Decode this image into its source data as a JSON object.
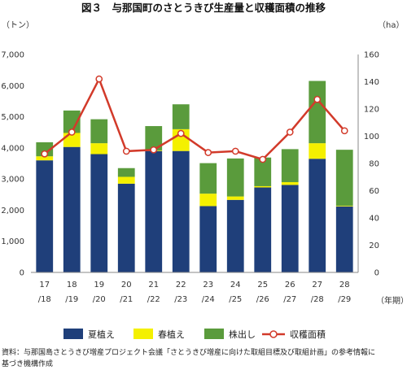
{
  "chart_data": {
    "type": "bar",
    "title": "図３　与那国町のさとうきび生産量と収穫面積の推移",
    "y_left_unit": "（トン）",
    "y_right_unit": "（ha）",
    "x_unit": "（年期）",
    "ylim_left": [
      0,
      7000
    ],
    "ylim_right": [
      0,
      160
    ],
    "yticks_left": [
      "0",
      "1,000",
      "2,000",
      "3,000",
      "4,000",
      "5,000",
      "6,000",
      "7,000"
    ],
    "yticks_right": [
      "0",
      "20",
      "40",
      "60",
      "80",
      "100",
      "120",
      "140",
      "160"
    ],
    "categories": [
      {
        "top": "17",
        "bottom": "/18"
      },
      {
        "top": "18",
        "bottom": "/19"
      },
      {
        "top": "19",
        "bottom": "/20"
      },
      {
        "top": "20",
        "bottom": "/21"
      },
      {
        "top": "21",
        "bottom": "/22"
      },
      {
        "top": "22",
        "bottom": "/23"
      },
      {
        "top": "23",
        "bottom": "/24"
      },
      {
        "top": "24",
        "bottom": "/25"
      },
      {
        "top": "25",
        "bottom": "/26"
      },
      {
        "top": "26",
        "bottom": "/27"
      },
      {
        "top": "27",
        "bottom": "/28"
      },
      {
        "top": "28",
        "bottom": "/29"
      }
    ],
    "series": [
      {
        "name": "夏植え",
        "color": "#1f3f7a",
        "values": [
          3600,
          4030,
          3800,
          2850,
          3900,
          3900,
          2130,
          2330,
          2730,
          2810,
          3650,
          2120
        ]
      },
      {
        "name": "春植え",
        "color": "#f4f000",
        "values": [
          130,
          450,
          350,
          220,
          20,
          700,
          400,
          110,
          40,
          90,
          500,
          20
        ]
      },
      {
        "name": "株出し",
        "color": "#5a9b3c",
        "values": [
          450,
          720,
          770,
          280,
          780,
          800,
          980,
          1220,
          920,
          1060,
          2000,
          1800
        ]
      }
    ],
    "line_series": {
      "name": "収穫面積",
      "color": "#d23a2a",
      "axis": "right",
      "values": [
        87,
        103,
        142,
        89,
        90,
        102,
        88,
        89,
        83,
        103,
        127,
        104
      ]
    },
    "legend_position": "bottom",
    "grid": false
  },
  "source_note": {
    "line1": "資料：与那国島さとうきび増産プロジェクト会議「さとうきび増産に向けた取組目標及び取組計画」の参考情報に",
    "line2": "基づき機構作成"
  }
}
